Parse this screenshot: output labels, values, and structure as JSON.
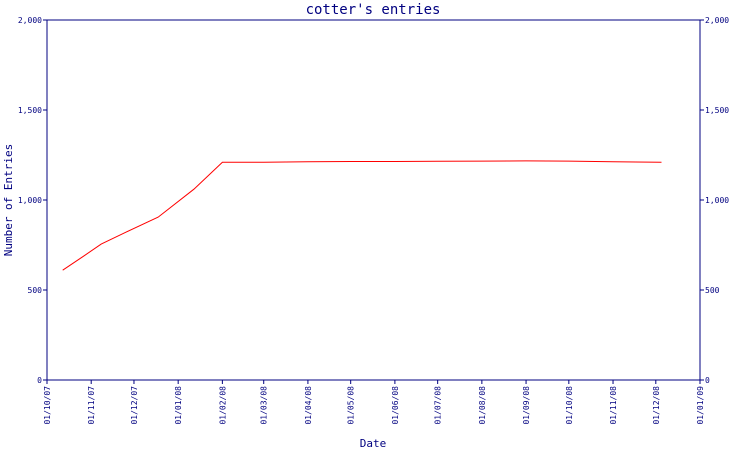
{
  "chart_data": {
    "type": "line",
    "title": "cotter's entries",
    "xlabel": "Date",
    "ylabel": "Number of Entries",
    "ylim": [
      0,
      2000
    ],
    "yticks": [
      "0",
      "500",
      "1,000",
      "1,500",
      "2,000"
    ],
    "ytick_values": [
      0,
      500,
      1000,
      1500,
      2000
    ],
    "x_ticks": [
      "01/10/07",
      "01/11/07",
      "01/12/07",
      "01/01/08",
      "01/02/08",
      "01/03/08",
      "01/04/08",
      "01/05/08",
      "01/06/08",
      "01/07/08",
      "01/08/08",
      "01/09/08",
      "01/10/08",
      "01/11/08",
      "01/12/08",
      "01/01/09"
    ],
    "grid": false,
    "series": [
      {
        "color": "#ff0000",
        "x": [
          "2007-10-12",
          "2007-10-27",
          "2007-11-08",
          "2007-11-25",
          "2007-12-18",
          "2008-01-12",
          "2008-02-01",
          "2008-03-01",
          "2008-04-01",
          "2008-05-01",
          "2008-06-01",
          "2008-07-01",
          "2008-08-01",
          "2008-09-01",
          "2008-10-01",
          "2008-11-01",
          "2008-12-05"
        ],
        "values": [
          610,
          690,
          755,
          820,
          905,
          1060,
          1210,
          1210,
          1212,
          1214,
          1214,
          1215,
          1216,
          1217,
          1216,
          1212,
          1210
        ]
      }
    ]
  }
}
